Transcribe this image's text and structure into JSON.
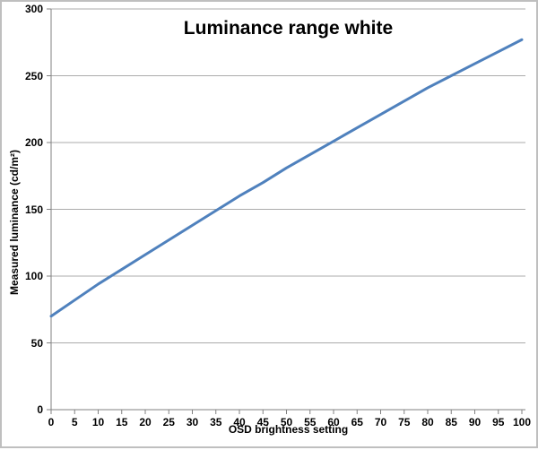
{
  "chart_data": {
    "type": "line",
    "title": "Luminance range white",
    "xlabel": "OSD brightness setting",
    "ylabel": "Measured luminance  (cd/m²)",
    "x": [
      0,
      5,
      10,
      15,
      20,
      25,
      30,
      35,
      40,
      45,
      50,
      55,
      60,
      65,
      70,
      75,
      80,
      85,
      90,
      95,
      100
    ],
    "values": [
      70,
      82,
      94,
      105,
      116,
      127,
      138,
      149,
      160,
      170,
      181,
      191,
      201,
      211,
      221,
      231,
      241,
      250,
      259,
      268,
      277
    ],
    "series_name": "Luminance range white",
    "xlim": [
      0,
      100
    ],
    "ylim": [
      0,
      300
    ],
    "x_ticks": [
      0,
      5,
      10,
      15,
      20,
      25,
      30,
      35,
      40,
      45,
      50,
      55,
      60,
      65,
      70,
      75,
      80,
      85,
      90,
      95,
      100
    ],
    "y_ticks": [
      0,
      50,
      100,
      150,
      200,
      250,
      300
    ],
    "grid": "horizontal",
    "legend": "none",
    "colors": {
      "series": "#4F81BD",
      "gridline": "#ABABAB",
      "axis": "#808080",
      "text": "#000000",
      "border": "#BFBFBF",
      "background": "#FFFFFF"
    }
  }
}
